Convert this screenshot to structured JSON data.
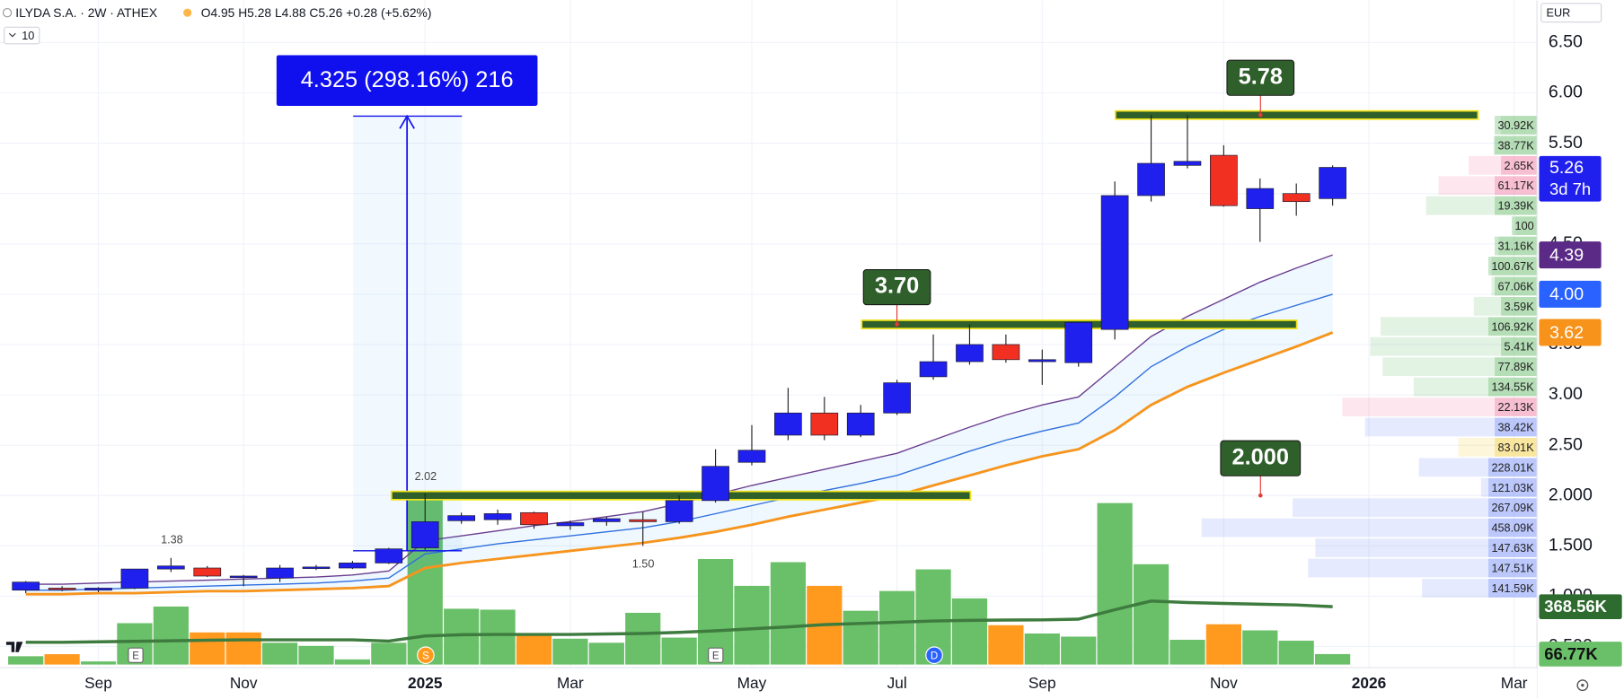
{
  "header": {
    "symbol": "ILYDA S.A. · 2W · ATHEX",
    "ohlc": "O4.95 H5.28 L4.88 C5.26 +0.28 (+5.62%)",
    "interval_count": "10",
    "currency": "EUR"
  },
  "chart_data": {
    "type": "candlestick",
    "up_color": "#2020ee",
    "down_color": "#f23022",
    "open": [
      1.06,
      1.08,
      1.06,
      1.08,
      1.27,
      1.28,
      1.19,
      1.18,
      1.28,
      1.28,
      1.33,
      1.48,
      1.75,
      1.76,
      1.83,
      1.7,
      1.74,
      1.76,
      1.74,
      1.95,
      2.33,
      2.6,
      2.82,
      2.6,
      2.82,
      3.18,
      3.33,
      3.5,
      3.33,
      3.32,
      3.65,
      4.98,
      5.28,
      5.38,
      4.85,
      5.0,
      4.95
    ],
    "high": [
      1.15,
      1.1,
      1.09,
      1.27,
      1.38,
      1.3,
      1.21,
      1.31,
      1.31,
      1.35,
      1.48,
      2.02,
      1.83,
      1.86,
      1.84,
      1.75,
      1.79,
      1.84,
      2.0,
      2.46,
      2.7,
      3.07,
      2.98,
      2.9,
      3.15,
      3.6,
      3.7,
      3.6,
      3.45,
      3.72,
      5.12,
      5.78,
      5.78,
      5.48,
      5.15,
      5.1,
      5.28
    ],
    "low": [
      1.03,
      1.05,
      1.04,
      1.07,
      1.24,
      1.19,
      1.1,
      1.14,
      1.26,
      1.27,
      1.32,
      1.46,
      1.72,
      1.71,
      1.67,
      1.66,
      1.7,
      1.5,
      1.72,
      1.93,
      2.3,
      2.55,
      2.55,
      2.58,
      2.8,
      3.15,
      3.3,
      3.32,
      3.1,
      3.28,
      3.55,
      4.92,
      5.25,
      4.87,
      4.52,
      4.78,
      4.88
    ],
    "close": [
      1.14,
      1.07,
      1.08,
      1.27,
      1.3,
      1.2,
      1.2,
      1.28,
      1.29,
      1.33,
      1.47,
      1.74,
      1.8,
      1.82,
      1.71,
      1.73,
      1.77,
      1.74,
      1.95,
      2.29,
      2.45,
      2.82,
      2.6,
      2.82,
      3.12,
      3.33,
      3.5,
      3.35,
      3.35,
      3.72,
      4.98,
      5.3,
      5.32,
      4.88,
      5.05,
      4.92,
      5.26
    ],
    "series": [
      {
        "color": "#6a3d8f",
        "values": [
          1.12,
          1.12,
          1.13,
          1.14,
          1.15,
          1.16,
          1.17,
          1.18,
          1.19,
          1.21,
          1.25,
          1.55,
          1.6,
          1.65,
          1.7,
          1.74,
          1.79,
          1.84,
          1.92,
          2.01,
          2.1,
          2.18,
          2.26,
          2.34,
          2.42,
          2.55,
          2.68,
          2.8,
          2.9,
          2.98,
          3.28,
          3.58,
          3.78,
          3.95,
          4.12,
          4.26,
          4.39
        ]
      },
      {
        "color": "#2f6fde",
        "values": [
          1.06,
          1.06,
          1.07,
          1.08,
          1.09,
          1.1,
          1.11,
          1.12,
          1.13,
          1.15,
          1.18,
          1.42,
          1.47,
          1.52,
          1.56,
          1.6,
          1.64,
          1.68,
          1.74,
          1.82,
          1.9,
          1.98,
          2.05,
          2.12,
          2.2,
          2.32,
          2.44,
          2.55,
          2.64,
          2.72,
          2.98,
          3.28,
          3.48,
          3.65,
          3.78,
          3.89,
          4.0
        ]
      },
      {
        "color": "#f7941d",
        "values": [
          1.02,
          1.02,
          1.03,
          1.03,
          1.04,
          1.05,
          1.05,
          1.06,
          1.07,
          1.08,
          1.1,
          1.28,
          1.33,
          1.37,
          1.41,
          1.45,
          1.49,
          1.53,
          1.58,
          1.64,
          1.71,
          1.79,
          1.86,
          1.93,
          2.0,
          2.1,
          2.2,
          2.3,
          2.39,
          2.46,
          2.65,
          2.9,
          3.08,
          3.22,
          3.35,
          3.48,
          3.62
        ]
      }
    ],
    "band_color": "#2196f3",
    "xlim": [
      -0.71,
      41.63
    ],
    "xticks": [
      {
        "value": 2,
        "label": "Sep"
      },
      {
        "value": 6,
        "label": "Nov"
      },
      {
        "value": 11,
        "label": "2025"
      },
      {
        "value": 15,
        "label": "Mar"
      },
      {
        "value": 20,
        "label": "May"
      },
      {
        "value": 24,
        "label": "Jul"
      },
      {
        "value": 28,
        "label": "Sep"
      },
      {
        "value": 33,
        "label": "Nov"
      },
      {
        "value": 37,
        "label": "2026"
      },
      {
        "value": 41,
        "label": "Mar"
      }
    ],
    "ylim": [
      0.29,
      6.92
    ],
    "yticks": [
      {
        "value": 6.5,
        "label": "6.50"
      },
      {
        "value": 6,
        "label": "6.00"
      },
      {
        "value": 5.5,
        "label": "5.50"
      },
      {
        "value": 5,
        "label": "5.00"
      },
      {
        "value": 4.5,
        "label": "4.50"
      },
      {
        "value": 4,
        "label": "4.00"
      },
      {
        "value": 3.5,
        "label": "3.50"
      },
      {
        "value": 3,
        "label": "3.00"
      },
      {
        "value": 2.5,
        "label": "2.50"
      },
      {
        "value": 2,
        "label": "2.000"
      },
      {
        "value": 1.5,
        "label": "1.500"
      },
      {
        "value": 1,
        "label": "1.000"
      },
      {
        "value": 0.5,
        "label": "0.500"
      }
    ],
    "grid": true,
    "volume": {
      "ylim": [
        0,
        1135
      ],
      "values": [
        53,
        66,
        20,
        264,
        370,
        205,
        205,
        139,
        119,
        33,
        139,
        1063,
        356,
        350,
        185,
        165,
        139,
        330,
        172,
        673,
        502,
        653,
        502,
        343,
        469,
        607,
        422,
        251,
        198,
        178,
        1030,
        640,
        158,
        257,
        218,
        152,
        66.77
      ],
      "colors": [
        "#6abf69",
        "#ff9a1f",
        "#6abf69",
        "#6abf69",
        "#6abf69",
        "#ff9a1f",
        "#ff9a1f",
        "#6abf69",
        "#6abf69",
        "#6abf69",
        "#6abf69",
        "#6abf69",
        "#6abf69",
        "#6abf69",
        "#ff9a1f",
        "#6abf69",
        "#6abf69",
        "#6abf69",
        "#6abf69",
        "#6abf69",
        "#6abf69",
        "#6abf69",
        "#ff9a1f",
        "#6abf69",
        "#6abf69",
        "#6abf69",
        "#6abf69",
        "#ff9a1f",
        "#6abf69",
        "#6abf69",
        "#6abf69",
        "#6abf69",
        "#6abf69",
        "#ff9a1f",
        "#6abf69",
        "#6abf69",
        "#6abf69"
      ],
      "ma": [
        142,
        142,
        145,
        148,
        152,
        155,
        158,
        158,
        158,
        158,
        150,
        182,
        190,
        192,
        192,
        192,
        195,
        198,
        205,
        215,
        228,
        240,
        255,
        262,
        270,
        278,
        282,
        284,
        285,
        290,
        350,
        405,
        395,
        390,
        385,
        380,
        368.56
      ],
      "ma_color": "#3e7b3e"
    },
    "price_badges": [
      {
        "value": 5.26,
        "label": "5.26",
        "sub": "3d 7h",
        "color": "#2020ee"
      },
      {
        "value": 4.39,
        "label": "4.39",
        "color": "#5b2a86"
      },
      {
        "value": 4,
        "label": "4.00",
        "color": "#2962ff"
      },
      {
        "value": 3.62,
        "label": "3.62",
        "color": "#f7931a"
      }
    ],
    "volume_badges": [
      {
        "value": 368.56,
        "label": "368.56K",
        "color": "#2e6b2e"
      },
      {
        "value": 66.77,
        "label": "66.77K",
        "color": "#6abf69"
      }
    ],
    "levels": [
      {
        "value": 2,
        "label": "2.000"
      },
      {
        "value": 3.7,
        "label": "3.70"
      },
      {
        "value": 5.78,
        "label": "5.78"
      }
    ],
    "level_color": "#2f5f2a",
    "level_border": "#f2e21a",
    "measure": {
      "label": "4.325 (298.16%) 216",
      "color": "#1010ee"
    },
    "hilo_labels": [
      {
        "value": 2.02,
        "label": "2.02"
      },
      {
        "value": 1.38,
        "label": "1.38"
      },
      {
        "value": 1.5,
        "label": "1.50"
      }
    ],
    "events": [
      {
        "label": "E"
      },
      {
        "label": "S"
      },
      {
        "label": "E"
      },
      {
        "label": "D"
      }
    ],
    "profile": [
      {
        "price": 5.68,
        "value": 30.92,
        "label": "30.92K",
        "total": 35,
        "color": "#4caf50"
      },
      {
        "price": 5.48,
        "value": 38.77,
        "label": "38.77K",
        "total": 42,
        "color": "#4caf50"
      },
      {
        "price": 5.28,
        "value": 2.65,
        "label": "2.65K",
        "total": 66,
        "color": "#f06292"
      },
      {
        "price": 5.08,
        "value": 61.17,
        "label": "61.17K",
        "total": 95,
        "color": "#f06292"
      },
      {
        "price": 4.88,
        "value": 19.39,
        "label": "19.39K",
        "total": 107,
        "color": "#4caf50"
      },
      {
        "price": 4.68,
        "value": 0.1,
        "label": "100",
        "total": 21,
        "color": "#4caf50"
      },
      {
        "price": 4.48,
        "value": 31.16,
        "label": "31.16K",
        "total": 37,
        "color": "#4caf50"
      },
      {
        "price": 4.28,
        "value": 100.67,
        "label": "100.67K",
        "total": 44,
        "color": "#4caf50"
      },
      {
        "price": 4.08,
        "value": 67.06,
        "label": "67.06K",
        "total": 44,
        "color": "#4caf50"
      },
      {
        "price": 3.88,
        "value": 3.59,
        "label": "3.59K",
        "total": 61,
        "color": "#4caf50"
      },
      {
        "price": 3.68,
        "value": 106.92,
        "label": "106.92K",
        "total": 151,
        "color": "#4caf50"
      },
      {
        "price": 3.48,
        "value": 5.41,
        "label": "5.41K",
        "total": 161,
        "color": "#4caf50"
      },
      {
        "price": 3.28,
        "value": 77.89,
        "label": "77.89K",
        "total": 149,
        "color": "#4caf50"
      },
      {
        "price": 3.08,
        "value": 134.55,
        "label": "134.55K",
        "total": 119,
        "color": "#4caf50"
      },
      {
        "price": 2.88,
        "value": 22.13,
        "label": "22.13K",
        "total": 188,
        "color": "#f06292"
      },
      {
        "price": 2.68,
        "value": 38.42,
        "label": "38.42K",
        "total": 166,
        "color": "#5c7cfa"
      },
      {
        "price": 2.48,
        "value": 83.01,
        "label": "83.01K",
        "total": 76,
        "color": "#f5c518"
      },
      {
        "price": 2.28,
        "value": 228.01,
        "label": "228.01K",
        "total": 114,
        "color": "#5c7cfa"
      },
      {
        "price": 2.08,
        "value": 121.03,
        "label": "121.03K",
        "total": 54,
        "color": "#5c7cfa"
      },
      {
        "price": 1.88,
        "value": 267.09,
        "label": "267.09K",
        "total": 236,
        "color": "#5c7cfa"
      },
      {
        "price": 1.68,
        "value": 458.09,
        "label": "458.09K",
        "total": 324,
        "color": "#5c7cfa"
      },
      {
        "price": 1.48,
        "value": 147.63,
        "label": "147.63K",
        "total": 214,
        "color": "#5c7cfa"
      },
      {
        "price": 1.28,
        "value": 147.51,
        "label": "147.51K",
        "total": 221,
        "color": "#5c7cfa"
      },
      {
        "price": 1.08,
        "value": 141.59,
        "label": "141.59K",
        "total": 111,
        "color": "#5c7cfa"
      }
    ]
  }
}
